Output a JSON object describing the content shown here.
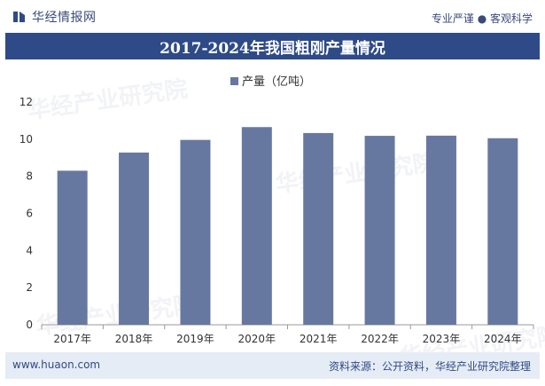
{
  "header": {
    "brand": "华经情报网",
    "slogan": "专业严谨 ● 客观科学"
  },
  "footer": {
    "website": "www.huaon.com",
    "source": "资料来源：公开资料，华经产业研究院整理"
  },
  "watermark": "华经产业研究院",
  "colors": {
    "title_bar": "#2e4a87",
    "bar": "#6778a0",
    "footer_bg": "#e6ecf5"
  },
  "chart_data": {
    "type": "bar",
    "title": "2017-2024年我国粗刚产量情况",
    "categories": [
      "2017年",
      "2018年",
      "2019年",
      "2020年",
      "2021年",
      "2022年",
      "2023年",
      "2024年"
    ],
    "series": [
      {
        "name": "产量（亿吨）",
        "values": [
          8.3,
          9.28,
          9.96,
          10.65,
          10.33,
          10.18,
          10.19,
          10.05
        ]
      }
    ],
    "ylim": [
      0,
      12
    ],
    "yticks": [
      0,
      2,
      4,
      6,
      8,
      10,
      12
    ],
    "xlabel": "",
    "ylabel": "",
    "legend_position": "top-center",
    "grid": false
  }
}
